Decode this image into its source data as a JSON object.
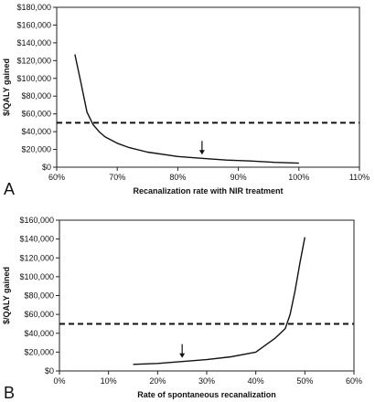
{
  "chart_data": [
    {
      "type": "line",
      "panel": "A",
      "xlabel": "Recanalization rate with NIR treatment",
      "ylabel": "$/QALY gained",
      "xlim": [
        60,
        110
      ],
      "ylim": [
        0,
        180000
      ],
      "x_ticks": [
        "60%",
        "70%",
        "80%",
        "90%",
        "100%",
        "110%"
      ],
      "y_ticks": [
        "$0",
        "$20,000",
        "$40,000",
        "$60,000",
        "$80,000",
        "$100,000",
        "$120,000",
        "$140,000",
        "$160,000",
        "$180,000"
      ],
      "x": [
        63,
        64,
        65,
        66,
        67,
        68,
        70,
        72,
        75,
        80,
        84,
        88,
        92,
        96,
        100
      ],
      "y": [
        127000,
        95000,
        62000,
        48000,
        40000,
        34000,
        27000,
        22000,
        17000,
        12000,
        10000,
        8000,
        7000,
        5500,
        4500
      ],
      "threshold": 50000,
      "arrow_x": 84,
      "grid": false,
      "legend": "none"
    },
    {
      "type": "line",
      "panel": "B",
      "xlabel": "Rate of spontaneous recanalization",
      "ylabel": "$/QALY gained",
      "xlim": [
        0,
        60
      ],
      "ylim": [
        0,
        160000
      ],
      "x_ticks": [
        "0%",
        "10%",
        "20%",
        "30%",
        "40%",
        "50%",
        "60%"
      ],
      "y_ticks": [
        "$0",
        "$20,000",
        "$40,000",
        "$60,000",
        "$80,000",
        "$100,000",
        "$120,000",
        "$140,000",
        "$160,000"
      ],
      "x": [
        15,
        20,
        25,
        30,
        35,
        40,
        44,
        46,
        47,
        48,
        49,
        50
      ],
      "y": [
        7000,
        8000,
        10000,
        12000,
        15000,
        20000,
        35000,
        45000,
        60000,
        85000,
        115000,
        142000
      ],
      "threshold": 50000,
      "arrow_x": 25,
      "grid": false,
      "legend": "none"
    }
  ],
  "panel_letters": [
    "A",
    "B"
  ]
}
